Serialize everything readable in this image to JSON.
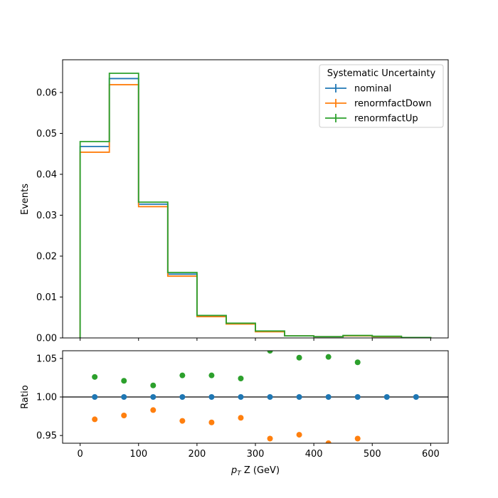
{
  "chart_data": [
    {
      "type": "histogram-step",
      "xlabel_prefix": "p",
      "xlabel_subscript": "T",
      "xlabel_suffix": " Z (GeV)",
      "ylabel": "Events",
      "xlim": [
        -30,
        630
      ],
      "ylim": [
        0,
        0.068
      ],
      "xticks": [
        0,
        100,
        200,
        300,
        400,
        500,
        600
      ],
      "yticks": [
        0.0,
        0.01,
        0.02,
        0.03,
        0.04,
        0.05,
        0.06
      ],
      "ytick_labels": [
        "0.00",
        "0.01",
        "0.02",
        "0.03",
        "0.04",
        "0.05",
        "0.06"
      ],
      "bin_edges": [
        0,
        50,
        100,
        150,
        200,
        250,
        300,
        350,
        400,
        450,
        500,
        550,
        600
      ],
      "legend": {
        "title": "Systematic Uncertainty",
        "position": "upper right"
      },
      "grid": false,
      "series": [
        {
          "name": "nominal",
          "color": "#1f77b4",
          "values": [
            0.0468,
            0.0634,
            0.0327,
            0.0156,
            0.0054,
            0.0035,
            0.0016,
            0.0005,
            0.0003,
            0.0005,
            0.0003,
            0.0001
          ]
        },
        {
          "name": "renormfactDown",
          "color": "#ff7f0e",
          "values": [
            0.0454,
            0.0619,
            0.0321,
            0.0151,
            0.0052,
            0.0034,
            0.0015,
            0.0005,
            0.0003,
            0.0005,
            0.0003,
            0.0001
          ]
        },
        {
          "name": "renormfactUp",
          "color": "#2ca02c",
          "values": [
            0.048,
            0.0647,
            0.0332,
            0.016,
            0.0055,
            0.0036,
            0.0017,
            0.0005,
            0.0003,
            0.0006,
            0.0004,
            0.0001
          ]
        }
      ]
    },
    {
      "type": "scatter",
      "xlabel_prefix": "p",
      "xlabel_subscript": "T",
      "xlabel_suffix": " Z (GeV)",
      "ylabel": "Ratio",
      "xlim": [
        -30,
        630
      ],
      "ylim": [
        0.94,
        1.06
      ],
      "xticks": [
        0,
        100,
        200,
        300,
        400,
        500,
        600
      ],
      "yticks": [
        0.95,
        1.0,
        1.05
      ],
      "ytick_labels": [
        "0.95",
        "1.00",
        "1.05"
      ],
      "reference_line": 1.0,
      "grid": false,
      "x": [
        25,
        75,
        125,
        175,
        225,
        275,
        325,
        375,
        425,
        475,
        525,
        575
      ],
      "series": [
        {
          "name": "nominal",
          "color": "#1f77b4",
          "values": [
            1.0,
            1.0,
            1.0,
            1.0,
            1.0,
            1.0,
            1.0,
            1.0,
            1.0,
            1.0,
            1.0,
            1.0
          ]
        },
        {
          "name": "renormfactDown",
          "color": "#ff7f0e",
          "values": [
            0.971,
            0.976,
            0.983,
            0.969,
            0.967,
            0.973,
            0.946,
            0.951,
            0.94,
            0.946,
            null,
            null
          ]
        },
        {
          "name": "renormfactUp",
          "color": "#2ca02c",
          "values": [
            1.026,
            1.021,
            1.015,
            1.028,
            1.028,
            1.024,
            1.06,
            1.051,
            1.052,
            1.045,
            null,
            null
          ]
        }
      ]
    }
  ]
}
